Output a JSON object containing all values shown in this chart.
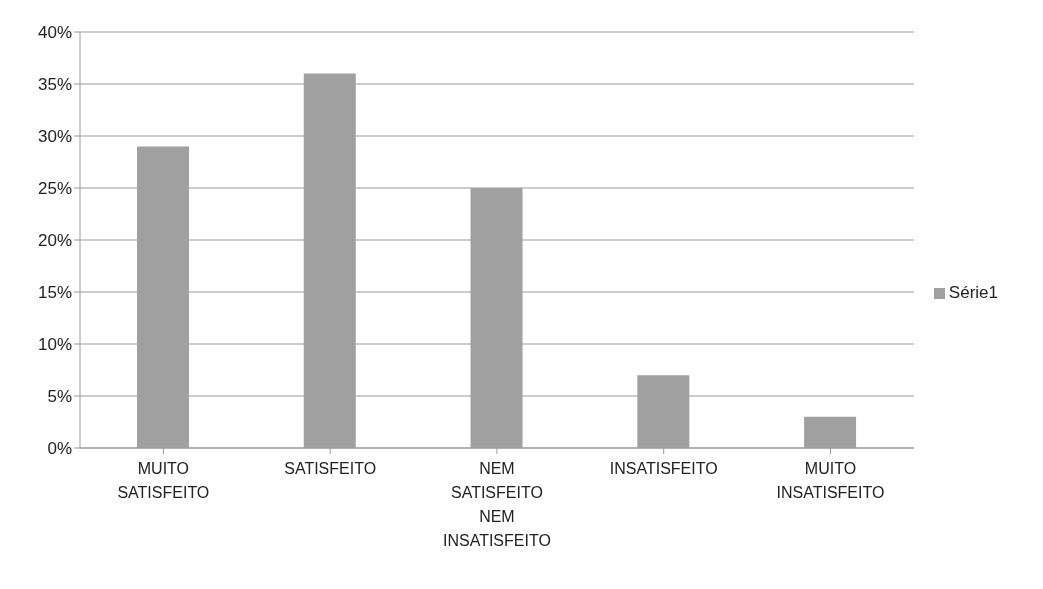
{
  "chart_data": {
    "type": "bar",
    "categories": [
      "MUITO SATISFEITO",
      "SATISFEITO",
      "NEM SATISFEITO NEM INSATISFEITO",
      "INSATISFEITO",
      "MUITO INSATISFEITO"
    ],
    "series": [
      {
        "name": "Série1",
        "color": "#a0a0a0",
        "values": [
          29,
          36,
          25,
          7,
          3
        ]
      }
    ],
    "ylim": [
      0,
      40
    ],
    "yticks": [
      {
        "value": 0,
        "label": "0%"
      },
      {
        "value": 5,
        "label": "5%"
      },
      {
        "value": 10,
        "label": "10%"
      },
      {
        "value": 15,
        "label": "15%"
      },
      {
        "value": 20,
        "label": "20%"
      },
      {
        "value": 25,
        "label": "25%"
      },
      {
        "value": 30,
        "label": "30%"
      },
      {
        "value": 35,
        "label": "35%"
      },
      {
        "value": 40,
        "label": "40%"
      }
    ],
    "grid": "y",
    "legend": "right"
  }
}
